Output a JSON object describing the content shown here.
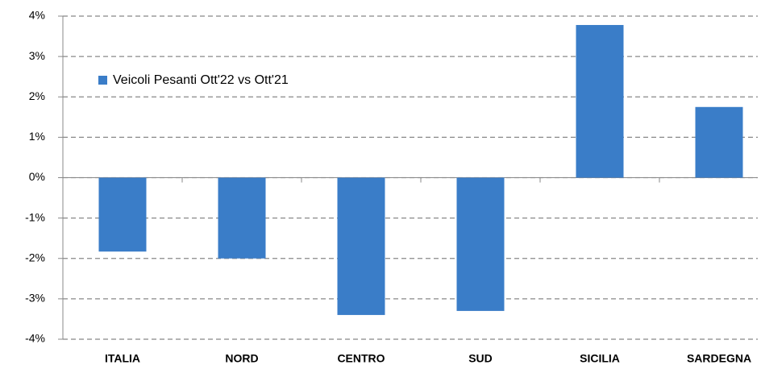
{
  "chart_data": {
    "type": "bar",
    "categories": [
      "ITALIA",
      "NORD",
      "CENTRO",
      "SUD",
      "SICILIA",
      "SARDEGNA"
    ],
    "series": [
      {
        "name": "Veicoli Pesanti Ott'22 vs Ott'21",
        "color": "#3a7dc8",
        "values": [
          -1.83,
          -2.0,
          -3.4,
          -3.3,
          3.78,
          1.75
        ]
      }
    ],
    "ylim": [
      -4,
      4
    ],
    "yticks": [
      {
        "value": -4,
        "label": "-4%"
      },
      {
        "value": -3,
        "label": "-3%"
      },
      {
        "value": -2,
        "label": "-2%"
      },
      {
        "value": -1,
        "label": "-1%"
      },
      {
        "value": 0,
        "label": "0%"
      },
      {
        "value": 1,
        "label": "1%"
      },
      {
        "value": 2,
        "label": "2%"
      },
      {
        "value": 3,
        "label": "3%"
      },
      {
        "value": 4,
        "label": "4%"
      }
    ],
    "grid": true,
    "legend": "top-left"
  }
}
